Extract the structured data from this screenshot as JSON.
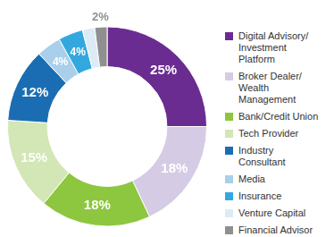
{
  "chart_data": {
    "type": "doughnut",
    "categories": [
      "Digital Advisory/ Investment Platform",
      "Broker Dealer/ Wealth Management",
      "Bank/Credit Union",
      "Tech Provider",
      "Industry Consultant",
      "Media",
      "Insurance",
      "Venture Capital",
      "Financial Advisor"
    ],
    "values": [
      25,
      18,
      18,
      15,
      12,
      4,
      4,
      2,
      2
    ],
    "value_labels": [
      "25%",
      "18%",
      "18%",
      "15%",
      "12%",
      "4%",
      "4%",
      null,
      "2%"
    ],
    "colors": [
      "#6b2c91",
      "#d5cbe4",
      "#8dc63f",
      "#d3e6b5",
      "#1b6db3",
      "#a9cfea",
      "#33a8df",
      "#dcebf6",
      "#8f8f8f"
    ],
    "data_labels": true,
    "legend": "right"
  }
}
